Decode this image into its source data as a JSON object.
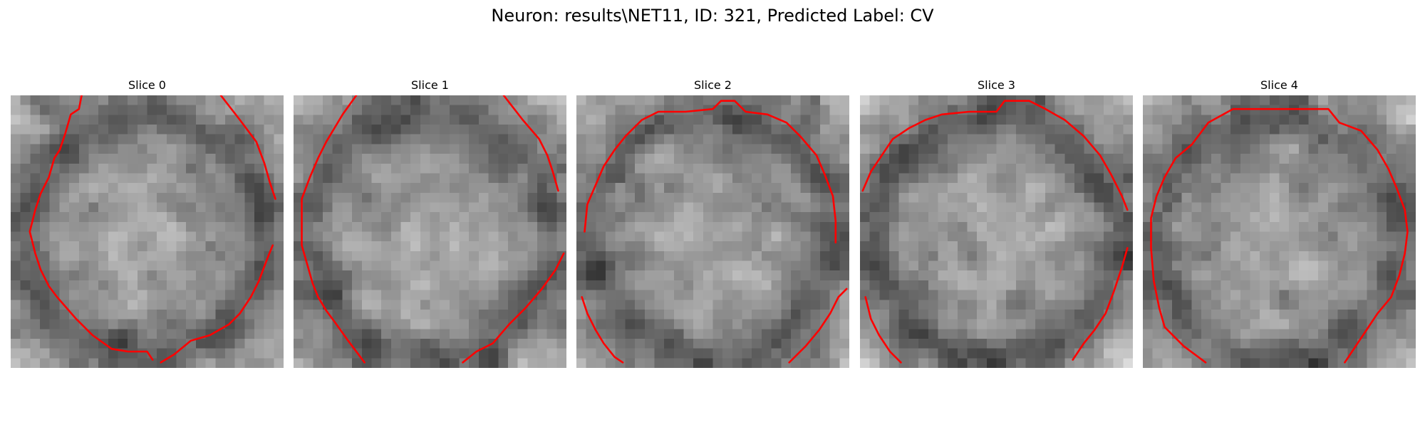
{
  "figure": {
    "suptitle": "Neuron: results\\NET11, ID: 321, Predicted Label: CV"
  },
  "slices": [
    {
      "title": "Slice 0"
    },
    {
      "title": "Slice 1"
    },
    {
      "title": "Slice 2"
    },
    {
      "title": "Slice 3"
    },
    {
      "title": "Slice 4"
    }
  ],
  "colors": {
    "contour": "#ff0000",
    "background": "#ffffff"
  },
  "image_style": {
    "colormap": "gray",
    "grid_size": 28
  }
}
